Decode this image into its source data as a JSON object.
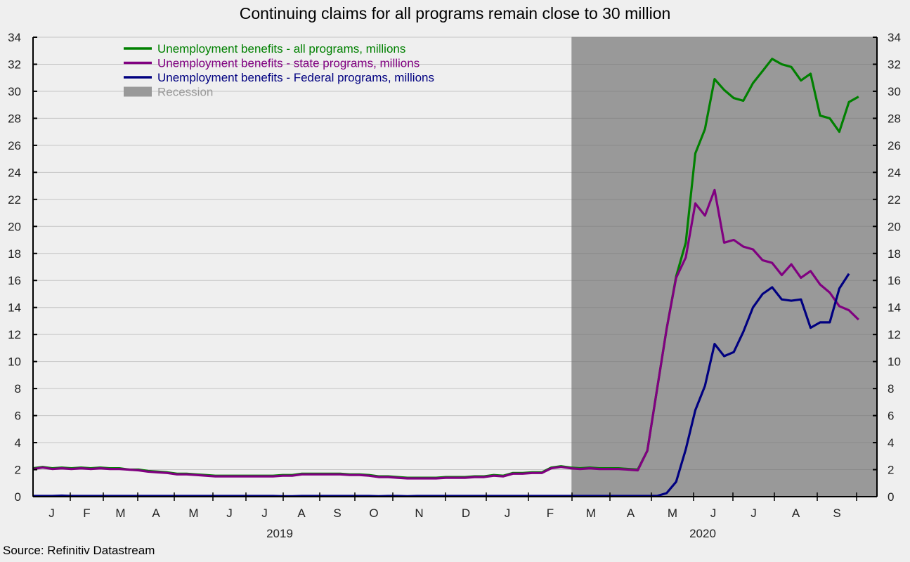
{
  "chart_data": {
    "type": "line",
    "title": "Continuing claims for all programs remain close to 30 million",
    "xlabel": "",
    "ylabel": "",
    "ylim": [
      0,
      34
    ],
    "y_ticks": [
      0,
      2,
      4,
      6,
      8,
      10,
      12,
      14,
      16,
      18,
      20,
      22,
      24,
      26,
      28,
      30,
      32,
      34
    ],
    "y_tick_labels": [
      "0",
      "2",
      "4",
      "6",
      "8",
      "10",
      "12",
      "14",
      "16",
      "18",
      "20",
      "22",
      "24",
      "26",
      "28",
      "30",
      "32",
      "34"
    ],
    "grid": true,
    "legend_position": "top-left",
    "x_period": "weekly, Jan 2019 - Aug 2020",
    "x_month_labels": [
      "J",
      "F",
      "M",
      "A",
      "M",
      "J",
      "J",
      "A",
      "S",
      "O",
      "N",
      "D",
      "J",
      "F",
      "M",
      "A",
      "M",
      "J",
      "J",
      "A",
      "S"
    ],
    "x_year_labels": [
      "2019",
      "2020"
    ],
    "recession": {
      "label": "Recession",
      "start_week_index": 56.1,
      "color": "#999999"
    },
    "series": [
      {
        "name": "Unemployment benefits - all programs, millions",
        "color": "#008000",
        "values": [
          2.1,
          2.2,
          2.1,
          2.15,
          2.1,
          2.15,
          2.1,
          2.15,
          2.1,
          2.1,
          2.0,
          2.0,
          1.9,
          1.85,
          1.8,
          1.7,
          1.7,
          1.65,
          1.6,
          1.55,
          1.55,
          1.55,
          1.55,
          1.55,
          1.55,
          1.55,
          1.6,
          1.6,
          1.7,
          1.7,
          1.7,
          1.7,
          1.7,
          1.65,
          1.65,
          1.6,
          1.5,
          1.5,
          1.45,
          1.4,
          1.4,
          1.4,
          1.4,
          1.45,
          1.45,
          1.45,
          1.5,
          1.5,
          1.6,
          1.55,
          1.75,
          1.75,
          1.8,
          1.8,
          2.15,
          2.25,
          2.15,
          2.1,
          2.15,
          2.1,
          2.1,
          2.1,
          2.05,
          2.0,
          3.4,
          7.9,
          12.4,
          16.3,
          18.8,
          25.4,
          27.2,
          30.9,
          30.1,
          29.5,
          29.3,
          30.6,
          31.5,
          32.4,
          32.0,
          31.8,
          30.8,
          31.3,
          28.2,
          28.0,
          27.0,
          29.2,
          29.6
        ]
      },
      {
        "name": "Unemployment benefits - state programs, millions",
        "color": "#800080",
        "values": [
          2.05,
          2.15,
          2.05,
          2.1,
          2.05,
          2.1,
          2.05,
          2.1,
          2.05,
          2.05,
          2.0,
          1.95,
          1.85,
          1.8,
          1.75,
          1.65,
          1.65,
          1.6,
          1.55,
          1.5,
          1.5,
          1.5,
          1.5,
          1.5,
          1.5,
          1.5,
          1.55,
          1.55,
          1.65,
          1.65,
          1.65,
          1.65,
          1.65,
          1.6,
          1.6,
          1.55,
          1.45,
          1.45,
          1.4,
          1.35,
          1.35,
          1.35,
          1.35,
          1.4,
          1.4,
          1.4,
          1.45,
          1.45,
          1.55,
          1.5,
          1.7,
          1.7,
          1.75,
          1.75,
          2.1,
          2.2,
          2.1,
          2.05,
          2.1,
          2.05,
          2.05,
          2.05,
          2.0,
          1.95,
          3.4,
          7.9,
          12.4,
          16.2,
          17.7,
          21.7,
          20.8,
          22.7,
          18.8,
          19.0,
          18.5,
          18.3,
          17.5,
          17.3,
          16.4,
          17.2,
          16.2,
          16.7,
          15.7,
          15.1,
          14.1,
          13.8,
          13.1
        ]
      },
      {
        "name": "Unemployment benefits - Federal programs, millions",
        "color": "#000080",
        "values": [
          0.05,
          0.05,
          0.05,
          0.08,
          0.05,
          0.05,
          0.05,
          0.05,
          0.05,
          0.05,
          0.05,
          0.05,
          0.05,
          0.05,
          0.05,
          0.05,
          0.05,
          0.05,
          0.05,
          0.05,
          0.05,
          0.05,
          0.05,
          0.05,
          0.05,
          0.05,
          0.03,
          0.03,
          0.05,
          0.05,
          0.05,
          0.05,
          0.05,
          0.05,
          0.05,
          0.05,
          0.03,
          0.05,
          0.05,
          0.03,
          0.05,
          0.05,
          0.05,
          0.05,
          0.05,
          0.05,
          0.05,
          0.05,
          0.05,
          0.05,
          0.05,
          0.05,
          0.05,
          0.05,
          0.05,
          0.05,
          0.05,
          0.05,
          0.05,
          0.05,
          0.05,
          0.05,
          0.05,
          0.05,
          0.05,
          0.05,
          0.26,
          1.1,
          3.5,
          6.4,
          8.2,
          11.3,
          10.4,
          10.7,
          12.2,
          14.0,
          15.0,
          15.5,
          14.6,
          14.5,
          14.6,
          12.5,
          12.9,
          12.9,
          15.4,
          16.5
        ]
      }
    ],
    "source": "Source: Refinitiv Datastream"
  }
}
